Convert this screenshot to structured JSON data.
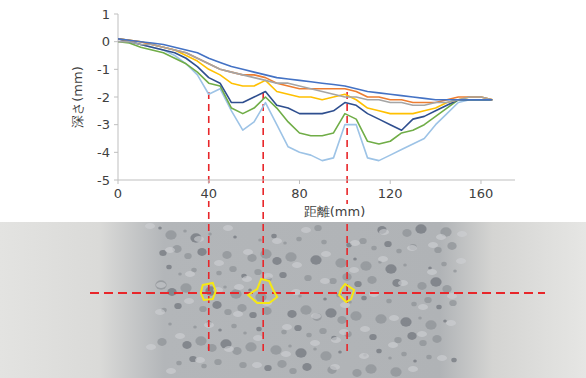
{
  "chart_data": {
    "type": "line",
    "x_label": "距離(mm)",
    "y_label": "深さ(mm)",
    "x": [
      0,
      5,
      10,
      15,
      20,
      25,
      30,
      35,
      40,
      45,
      50,
      55,
      60,
      65,
      70,
      75,
      80,
      85,
      90,
      95,
      100,
      105,
      110,
      115,
      120,
      125,
      130,
      135,
      140,
      145,
      150,
      155,
      160,
      165
    ],
    "xlim": [
      0,
      175
    ],
    "xticks": [
      0,
      40,
      80,
      120,
      160
    ],
    "ylim": [
      -5,
      1
    ],
    "yticks": [
      -5,
      -4,
      -3,
      -2,
      -1,
      0,
      1
    ],
    "grid": false,
    "reference_lines_x": [
      40,
      64,
      101
    ],
    "series": [
      {
        "color": "#9dc3e6",
        "values": [
          0.1,
          0.05,
          -0.1,
          -0.2,
          -0.3,
          -0.5,
          -0.8,
          -1.2,
          -1.9,
          -1.7,
          -2.5,
          -3.2,
          -2.9,
          -2.2,
          -3.0,
          -3.8,
          -4.0,
          -4.1,
          -4.3,
          -4.2,
          -3.0,
          -3.0,
          -4.2,
          -4.3,
          -4.1,
          -3.9,
          -3.7,
          -3.5,
          -3.0,
          -2.6,
          -2.2,
          -2.1,
          -2.1,
          -2.1
        ]
      },
      {
        "color": "#70ad47",
        "values": [
          0,
          -0.05,
          -0.2,
          -0.3,
          -0.4,
          -0.6,
          -0.8,
          -1.1,
          -1.5,
          -1.6,
          -2.4,
          -2.6,
          -2.4,
          -2.0,
          -2.4,
          -2.9,
          -3.3,
          -3.4,
          -3.4,
          -3.3,
          -2.6,
          -2.8,
          -3.6,
          -3.7,
          -3.6,
          -3.3,
          -3.2,
          -3.0,
          -2.7,
          -2.4,
          -2.1,
          -2.1,
          -2.1,
          -2.1
        ]
      },
      {
        "color": "#2f4f8f",
        "values": [
          0.1,
          0,
          -0.1,
          -0.2,
          -0.3,
          -0.4,
          -0.6,
          -0.9,
          -1.3,
          -1.5,
          -2.2,
          -2.2,
          -2.0,
          -1.8,
          -2.3,
          -2.4,
          -2.6,
          -2.6,
          -2.6,
          -2.5,
          -2.2,
          -2.3,
          -2.6,
          -2.8,
          -3.0,
          -3.2,
          -2.8,
          -2.7,
          -2.5,
          -2.3,
          -2.1,
          -2.1,
          -2.1,
          -2.1
        ]
      },
      {
        "color": "#ffc000",
        "values": [
          0.1,
          0.05,
          0,
          -0.1,
          -0.2,
          -0.3,
          -0.5,
          -0.7,
          -1.0,
          -1.2,
          -1.5,
          -1.6,
          -1.6,
          -1.4,
          -1.8,
          -1.9,
          -2.0,
          -2.0,
          -2.1,
          -2.0,
          -1.9,
          -2.1,
          -2.4,
          -2.5,
          -2.6,
          -2.6,
          -2.6,
          -2.5,
          -2.4,
          -2.2,
          -2.1,
          -2.0,
          -2.0,
          -2.1
        ]
      },
      {
        "color": "#ed7d31",
        "values": [
          0.1,
          0.05,
          0,
          -0.1,
          -0.2,
          -0.3,
          -0.4,
          -0.6,
          -0.8,
          -1.0,
          -1.1,
          -1.2,
          -1.2,
          -1.3,
          -1.5,
          -1.6,
          -1.7,
          -1.7,
          -1.7,
          -1.7,
          -1.7,
          -1.8,
          -2.0,
          -2.0,
          -2.1,
          -2.1,
          -2.2,
          -2.2,
          -2.2,
          -2.1,
          -2.0,
          -2.0,
          -2.0,
          -2.1
        ]
      },
      {
        "color": "#a5a5a5",
        "values": [
          0,
          0,
          -0.1,
          -0.1,
          -0.2,
          -0.3,
          -0.4,
          -0.6,
          -0.8,
          -1.0,
          -1.1,
          -1.2,
          -1.3,
          -1.4,
          -1.5,
          -1.5,
          -1.6,
          -1.7,
          -1.8,
          -1.9,
          -2.0,
          -2.0,
          -2.1,
          -2.1,
          -2.2,
          -2.2,
          -2.3,
          -2.3,
          -2.2,
          -2.2,
          -2.1,
          -2.0,
          -2.0,
          -2.1
        ]
      },
      {
        "color": "#4472c4",
        "values": [
          0.1,
          0.05,
          0,
          -0.05,
          -0.1,
          -0.2,
          -0.3,
          -0.4,
          -0.6,
          -0.75,
          -0.9,
          -1.0,
          -1.1,
          -1.2,
          -1.3,
          -1.35,
          -1.4,
          -1.45,
          -1.5,
          -1.55,
          -1.6,
          -1.7,
          -1.8,
          -1.85,
          -1.9,
          -1.95,
          -2.0,
          -2.05,
          -2.1,
          -2.1,
          -2.1,
          -2.1,
          -2.1,
          -2.1
        ]
      }
    ]
  }
}
